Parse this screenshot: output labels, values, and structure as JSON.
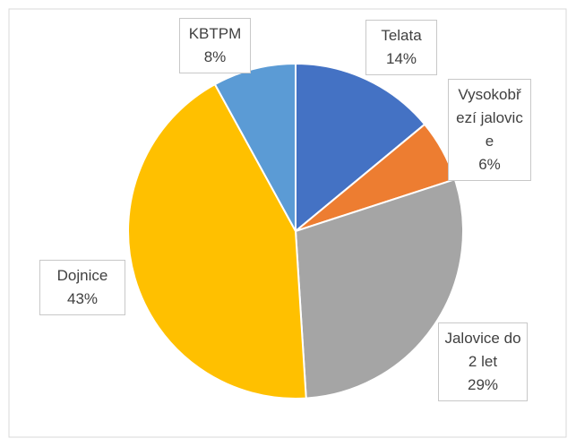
{
  "chart_data": {
    "type": "pie",
    "categories": [
      "Telata",
      "Vysokobřezí jalovice",
      "Jalovice do 2 let",
      "Dojnice",
      "KBTPM"
    ],
    "values": [
      14,
      6,
      29,
      43,
      8
    ],
    "value_labels": [
      "14%",
      "6%",
      "29%",
      "43%",
      "8%"
    ],
    "colors": [
      "#4472c4",
      "#ed7d31",
      "#a5a5a5",
      "#ffc000",
      "#5b9bd5"
    ]
  }
}
